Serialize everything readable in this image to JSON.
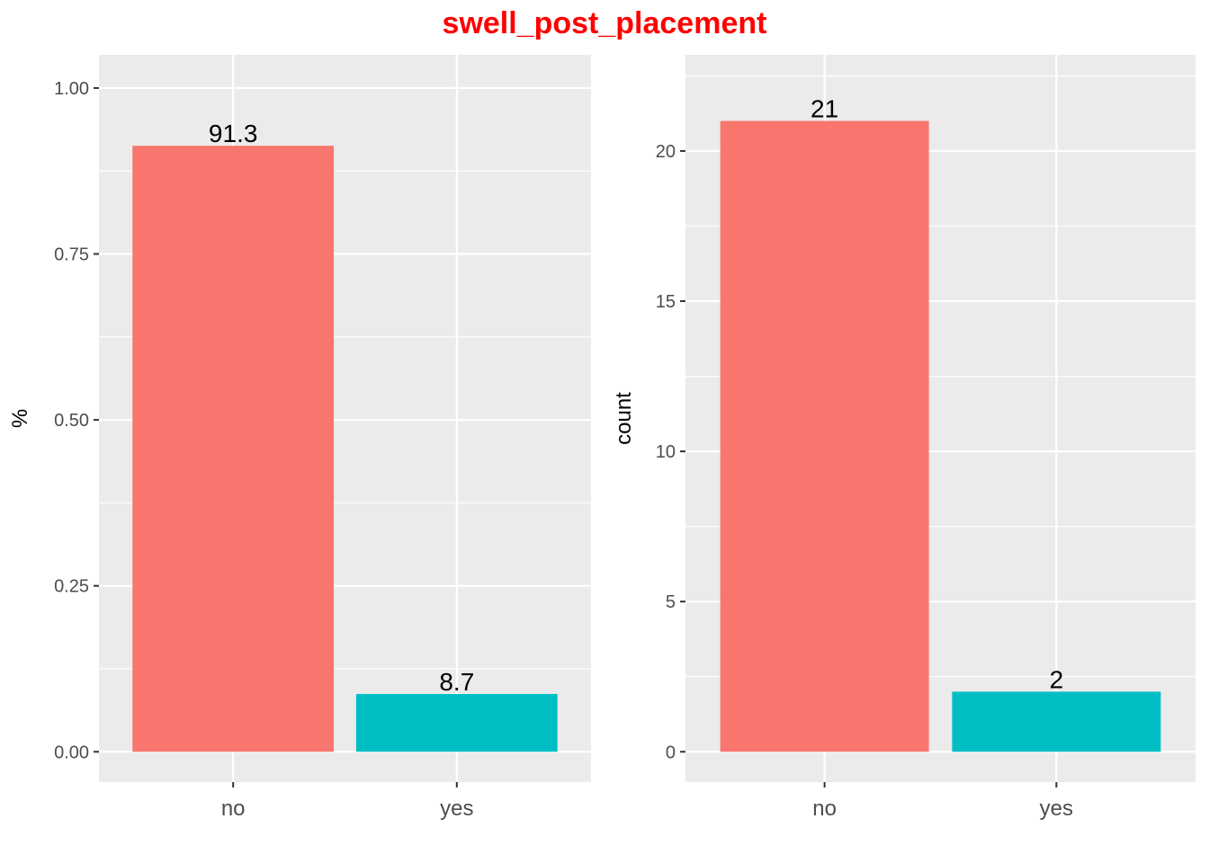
{
  "title": "swell_post_placement",
  "colors": {
    "title": "#ff0000",
    "panel_background": "#ebebeb",
    "grid": "#ffffff",
    "no": "#f8766d",
    "yes": "#00bfc4"
  },
  "chart_data": [
    {
      "type": "bar",
      "categories": [
        "no",
        "yes"
      ],
      "values": [
        0.913,
        0.087
      ],
      "data_labels": [
        "91.3",
        "8.7"
      ],
      "ylabel": "%",
      "xlabel": "",
      "ylim": [
        0,
        1.05
      ],
      "yticks": [
        0,
        0.25,
        0.5,
        0.75,
        1
      ],
      "ytick_labels": [
        "0.00",
        "0.25",
        "0.50",
        "0.75",
        "1.00"
      ],
      "bar_colors": [
        "#f8766d",
        "#00bfc4"
      ],
      "grid": true,
      "legend": "none"
    },
    {
      "type": "bar",
      "categories": [
        "no",
        "yes"
      ],
      "values": [
        21,
        2
      ],
      "data_labels": [
        "21",
        "2"
      ],
      "ylabel": "count",
      "xlabel": "",
      "ylim": [
        0,
        23.2
      ],
      "yticks": [
        0,
        5,
        10,
        15,
        20
      ],
      "ytick_labels": [
        "0",
        "5",
        "10",
        "15",
        "20"
      ],
      "bar_colors": [
        "#f8766d",
        "#00bfc4"
      ],
      "grid": true,
      "legend": "none"
    }
  ]
}
